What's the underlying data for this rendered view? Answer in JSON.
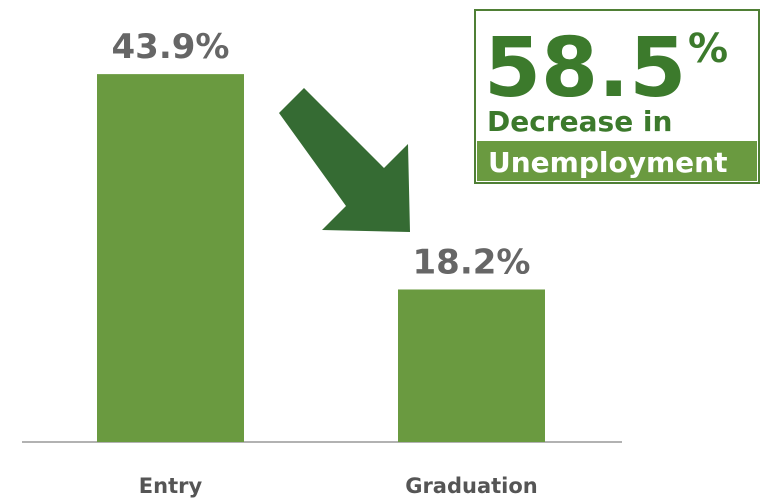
{
  "chart_data": {
    "type": "bar",
    "categories": [
      "Entry",
      "Graduation"
    ],
    "values": [
      43.9,
      18.2
    ],
    "value_labels": [
      "43.9%",
      "18.2%"
    ],
    "color": "#6a9a40",
    "callout": {
      "value": "58.5",
      "unit": "%",
      "line1": "Decrease in",
      "line2": "Unemployment"
    }
  }
}
